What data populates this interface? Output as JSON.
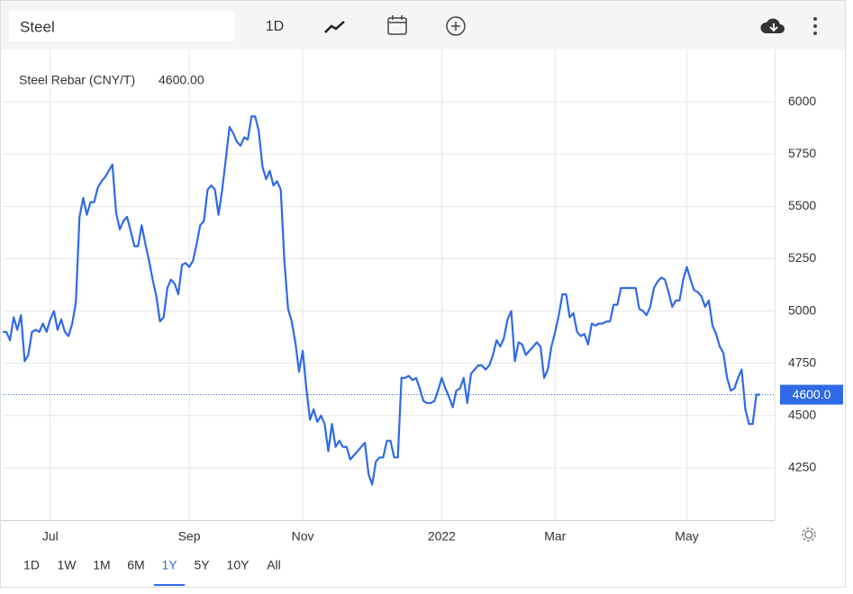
{
  "toolbar": {
    "search": "Steel",
    "interval": "1D"
  },
  "chart_data": {
    "type": "line",
    "series": [
      {
        "name": "Steel Rebar (CNY/T)",
        "color": "#2f6ae6",
        "last_label": "4600.00",
        "values": [
          4900,
          4900,
          4860,
          4970,
          4910,
          4980,
          4760,
          4790,
          4900,
          4910,
          4900,
          4940,
          4900,
          4960,
          5000,
          4910,
          4960,
          4900,
          4880,
          4940,
          5040,
          5450,
          5540,
          5460,
          5520,
          5520,
          5590,
          5620,
          5640,
          5670,
          5700,
          5470,
          5390,
          5430,
          5450,
          5380,
          5310,
          5310,
          5410,
          5320,
          5240,
          5150,
          5070,
          4950,
          4970,
          5110,
          5150,
          5130,
          5080,
          5220,
          5230,
          5210,
          5240,
          5320,
          5410,
          5430,
          5580,
          5600,
          5580,
          5460,
          5580,
          5730,
          5880,
          5850,
          5810,
          5790,
          5830,
          5820,
          5930,
          5930,
          5860,
          5690,
          5630,
          5670,
          5600,
          5620,
          5580,
          5240,
          5010,
          4950,
          4850,
          4710,
          4810,
          4630,
          4480,
          4530,
          4470,
          4500,
          4460,
          4330,
          4460,
          4350,
          4380,
          4350,
          4350,
          4290,
          4310,
          4330,
          4350,
          4370,
          4220,
          4170,
          4280,
          4300,
          4300,
          4380,
          4380,
          4300,
          4300,
          4680,
          4680,
          4690,
          4670,
          4680,
          4630,
          4570,
          4560,
          4560,
          4570,
          4620,
          4680,
          4630,
          4590,
          4540,
          4620,
          4630,
          4680,
          4560,
          4700,
          4720,
          4740,
          4740,
          4720,
          4740,
          4790,
          4860,
          4830,
          4870,
          4960,
          5000,
          4760,
          4850,
          4840,
          4790,
          4810,
          4830,
          4850,
          4830,
          4680,
          4720,
          4830,
          4900,
          4980,
          5080,
          5080,
          4970,
          4990,
          4900,
          4880,
          4890,
          4840,
          4940,
          4930,
          4940,
          4940,
          4950,
          4950,
          5030,
          5030,
          5110,
          5110,
          5110,
          5110,
          5110,
          5010,
          5000,
          4980,
          5020,
          5110,
          5140,
          5160,
          5150,
          5090,
          5020,
          5050,
          5050,
          5150,
          5210,
          5150,
          5100,
          5090,
          5070,
          5020,
          5050,
          4930,
          4890,
          4830,
          4800,
          4680,
          4620,
          4630,
          4680,
          4720,
          4530,
          4460,
          4460,
          4600,
          4600
        ]
      }
    ],
    "price_line": {
      "value": 4600,
      "label": "4600.0"
    },
    "xlim": [
      0,
      211
    ],
    "xticks": [
      {
        "value": 13,
        "label": "Jul"
      },
      {
        "value": 51,
        "label": "Sep"
      },
      {
        "value": 82,
        "label": "Nov"
      },
      {
        "value": 120,
        "label": "2022"
      },
      {
        "value": 151,
        "label": "Mar"
      },
      {
        "value": 187,
        "label": "May"
      }
    ],
    "ylim": [
      4000,
      6250
    ],
    "yticks": [
      4250,
      4500,
      4750,
      5000,
      5250,
      5500,
      5750,
      6000
    ],
    "grid": true
  },
  "ranges": [
    "1D",
    "1W",
    "1M",
    "6M",
    "1Y",
    "5Y",
    "10Y",
    "All"
  ],
  "selected_range": "1Y"
}
